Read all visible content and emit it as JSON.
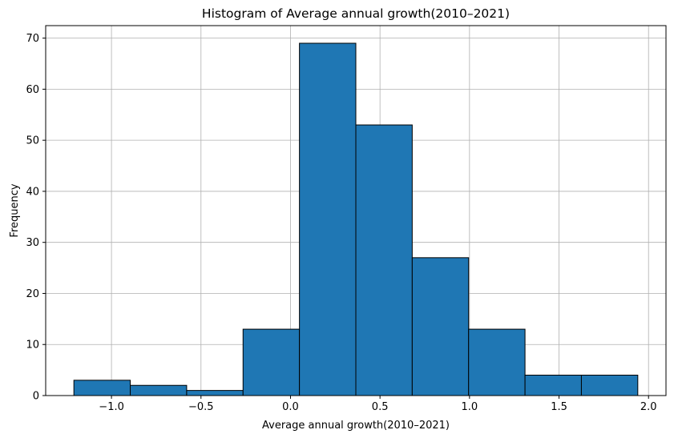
{
  "chart_data": {
    "type": "bar",
    "subtype": "histogram",
    "title": "Histogram of Average annual growth(2010–2021)",
    "xlabel": "Average annual growth(2010–2021)",
    "ylabel": "Frequency",
    "bin_edges": [
      -1.21,
      -0.895,
      -0.58,
      -0.265,
      0.05,
      0.365,
      0.68,
      0.995,
      1.31,
      1.625,
      1.94
    ],
    "values": [
      3,
      2,
      1,
      13,
      69,
      53,
      27,
      13,
      4,
      4
    ],
    "xlim": [
      -1.3675,
      2.0975
    ],
    "ylim": [
      0,
      72.45
    ],
    "xticks": [
      -1.0,
      -0.5,
      0.0,
      0.5,
      1.0,
      1.5,
      2.0
    ],
    "xtick_labels": [
      "−1.0",
      "−0.5",
      "0.0",
      "0.5",
      "1.0",
      "1.5",
      "2.0"
    ],
    "yticks": [
      0,
      10,
      20,
      30,
      40,
      50,
      60,
      70
    ],
    "ytick_labels": [
      "0",
      "10",
      "20",
      "30",
      "40",
      "50",
      "60",
      "70"
    ],
    "grid": true,
    "colors": {
      "bar_fill": "#1f77b4",
      "bar_edge": "#000000",
      "grid": "#b0b0b0"
    }
  }
}
